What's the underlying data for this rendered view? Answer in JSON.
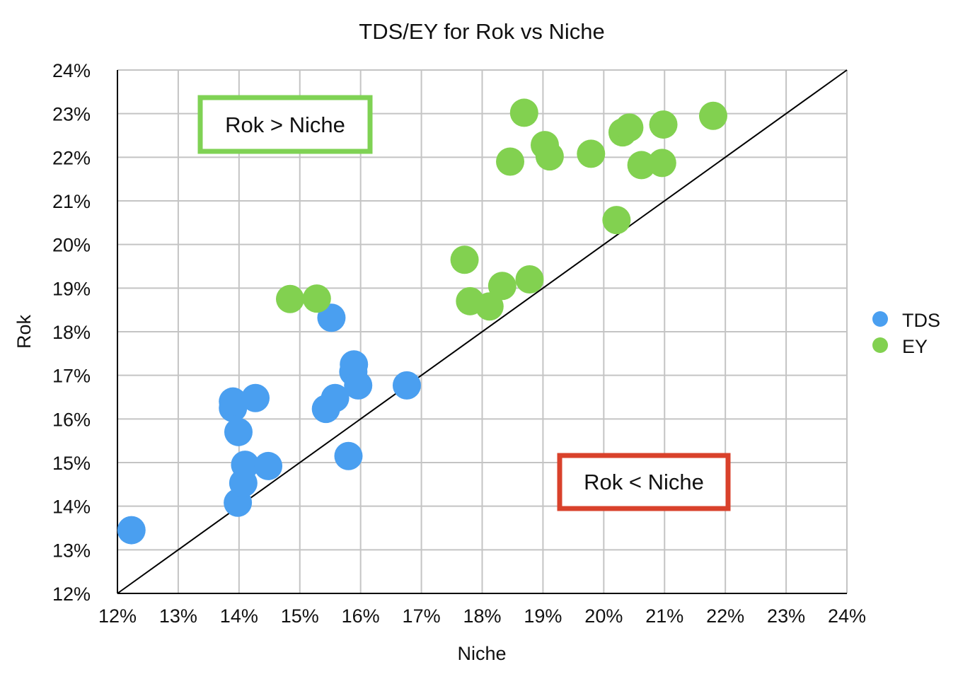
{
  "chart_data": {
    "type": "scatter",
    "title": "TDS/EY for Rok vs Niche",
    "xlabel": "Niche",
    "ylabel": "Rok",
    "xlim": [
      12,
      24
    ],
    "ylim": [
      12,
      24
    ],
    "xticks": [
      "12%",
      "13%",
      "14%",
      "15%",
      "16%",
      "17%",
      "18%",
      "19%",
      "20%",
      "21%",
      "22%",
      "23%",
      "24%"
    ],
    "yticks": [
      "12%",
      "13%",
      "14%",
      "15%",
      "16%",
      "17%",
      "18%",
      "19%",
      "20%",
      "21%",
      "22%",
      "23%",
      "24%"
    ],
    "grid": true,
    "legend_position": "right",
    "reference_line": {
      "type": "y=x"
    },
    "annotations": [
      {
        "text": "Rok > Niche",
        "region": "upper-left",
        "border_color": "#7fd254"
      },
      {
        "text": "Rok < Niche",
        "region": "lower-right",
        "border_color": "#d9412b"
      }
    ],
    "series": [
      {
        "name": "TDS",
        "color": "#4a9ff0",
        "points": [
          [
            12.23,
            13.45
          ],
          [
            13.98,
            14.08
          ],
          [
            14.07,
            14.53
          ],
          [
            14.1,
            14.95
          ],
          [
            14.48,
            14.92
          ],
          [
            13.99,
            15.7
          ],
          [
            13.9,
            16.25
          ],
          [
            13.9,
            16.4
          ],
          [
            14.27,
            16.48
          ],
          [
            15.43,
            16.23
          ],
          [
            15.58,
            16.48
          ],
          [
            15.8,
            15.15
          ],
          [
            15.88,
            17.08
          ],
          [
            15.89,
            17.25
          ],
          [
            15.96,
            16.77
          ],
          [
            16.76,
            16.77
          ],
          [
            15.52,
            18.32
          ]
        ]
      },
      {
        "name": "EY",
        "color": "#82d150",
        "points": [
          [
            14.84,
            18.75
          ],
          [
            15.28,
            18.76
          ],
          [
            17.71,
            19.65
          ],
          [
            17.8,
            18.7
          ],
          [
            18.12,
            18.58
          ],
          [
            18.33,
            19.05
          ],
          [
            18.78,
            19.2
          ],
          [
            18.46,
            21.9
          ],
          [
            18.69,
            23.02
          ],
          [
            19.03,
            22.28
          ],
          [
            19.11,
            22.02
          ],
          [
            19.79,
            22.08
          ],
          [
            20.21,
            20.56
          ],
          [
            20.31,
            22.57
          ],
          [
            20.42,
            22.68
          ],
          [
            20.62,
            21.82
          ],
          [
            20.96,
            21.87
          ],
          [
            20.98,
            22.75
          ],
          [
            21.8,
            22.95
          ]
        ]
      }
    ]
  }
}
